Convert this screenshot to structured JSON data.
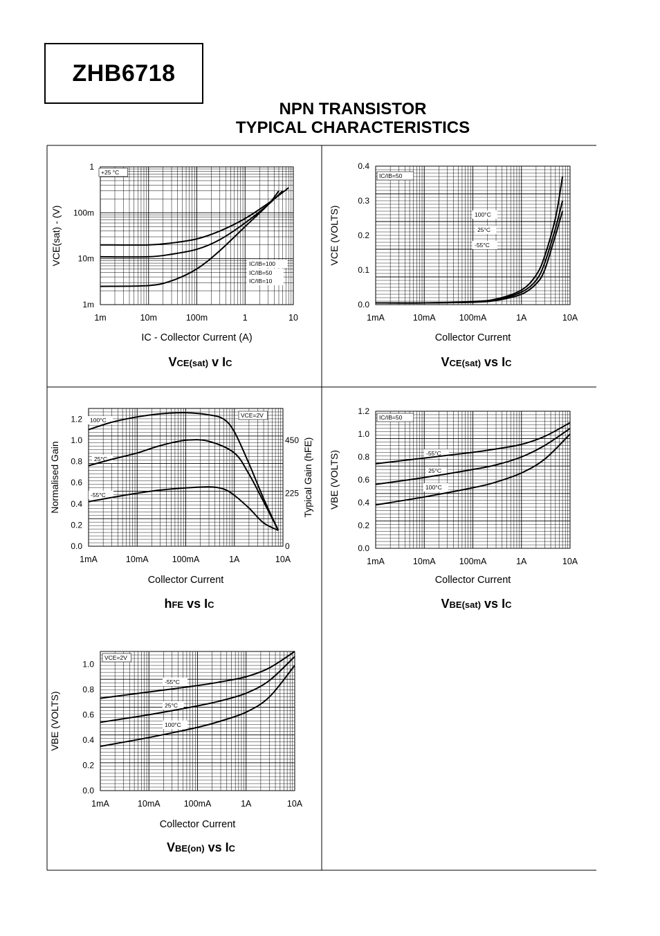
{
  "header": {
    "part_number": "ZHB6718",
    "title_line1": "NPN TRANSISTOR",
    "title_line2": "TYPICAL CHARACTERISTICS"
  },
  "chart_data": [
    {
      "id": "vcesat-v-ic",
      "type": "line",
      "title": "VCE(sat) v IC",
      "title_main": "V",
      "title_sub": "CE(sat)",
      "title_rest": " v I",
      "title_tail": "C",
      "xlabel": "IC - Collector Current (A)",
      "ylabel": "VCE(sat) - (V)",
      "x_scale": "log",
      "y_scale": "log",
      "xlim": [
        0.001,
        10
      ],
      "ylim": [
        0.001,
        1
      ],
      "x_ticks": [
        0.001,
        0.01,
        0.1,
        1,
        10
      ],
      "x_tick_labels": [
        "1m",
        "10m",
        "100m",
        "1",
        "10"
      ],
      "y_ticks": [
        0.001,
        0.01,
        0.1,
        1
      ],
      "y_tick_labels": [
        "1m",
        "10m",
        "100m",
        "1"
      ],
      "annotations": [
        "+25 °C",
        "IC/IB=100",
        "IC/IB=50",
        "IC/IB=10"
      ],
      "series": [
        {
          "name": "IC/IB=100",
          "x": [
            0.001,
            0.01,
            0.03,
            0.1,
            0.3,
            1,
            3,
            5
          ],
          "y": [
            0.0025,
            0.0026,
            0.0033,
            0.006,
            0.015,
            0.05,
            0.15,
            0.3
          ]
        },
        {
          "name": "IC/IB=50",
          "x": [
            0.001,
            0.01,
            0.03,
            0.1,
            0.3,
            1,
            3,
            6
          ],
          "y": [
            0.011,
            0.011,
            0.0125,
            0.016,
            0.026,
            0.06,
            0.15,
            0.3
          ]
        },
        {
          "name": "IC/IB=10",
          "x": [
            0.001,
            0.01,
            0.03,
            0.1,
            0.3,
            1,
            3,
            8
          ],
          "y": [
            0.02,
            0.02,
            0.022,
            0.027,
            0.04,
            0.075,
            0.16,
            0.35
          ]
        }
      ]
    },
    {
      "id": "vcesat-vs-ic",
      "type": "line",
      "title": "VCE(sat) vs IC",
      "title_main": "V",
      "title_sub": "CE(sat)",
      "title_rest": " vs I",
      "title_tail": "C",
      "xlabel": "Collector Current",
      "ylabel": "VCE (VOLTS)",
      "x_scale": "log",
      "y_scale": "linear",
      "xlim": [
        0.001,
        10
      ],
      "ylim": [
        0,
        0.4
      ],
      "x_ticks": [
        0.001,
        0.01,
        0.1,
        1,
        10
      ],
      "x_tick_labels": [
        "1mA",
        "10mA",
        "100mA",
        "1A",
        "10A"
      ],
      "y_ticks": [
        0,
        0.1,
        0.2,
        0.3,
        0.4
      ],
      "y_tick_labels": [
        "0.0",
        "0.1",
        "0.2",
        "0.3",
        "0.4"
      ],
      "annotations": [
        "IC/IB=50",
        "100°C",
        "25°C",
        "-55°C"
      ],
      "series": [
        {
          "name": "100°C",
          "x": [
            0.001,
            0.01,
            0.1,
            0.3,
            1,
            2,
            3,
            5,
            7
          ],
          "y": [
            0.005,
            0.005,
            0.007,
            0.012,
            0.03,
            0.06,
            0.1,
            0.2,
            0.27
          ]
        },
        {
          "name": "25°C",
          "x": [
            0.001,
            0.01,
            0.1,
            0.3,
            1,
            2,
            3,
            5,
            7
          ],
          "y": [
            0.005,
            0.005,
            0.008,
            0.014,
            0.036,
            0.07,
            0.12,
            0.22,
            0.3
          ]
        },
        {
          "name": "-55°C",
          "x": [
            0.001,
            0.01,
            0.1,
            0.3,
            1,
            2,
            3,
            5,
            7
          ],
          "y": [
            0.005,
            0.005,
            0.009,
            0.016,
            0.042,
            0.085,
            0.14,
            0.25,
            0.37
          ]
        }
      ]
    },
    {
      "id": "hfe-vs-ic",
      "type": "line",
      "title": "hFE vs IC",
      "title_main": "h",
      "title_sub": "FE",
      "title_rest": " vs I",
      "title_tail": "C",
      "xlabel": "Collector Current",
      "ylabel": "Normalised Gain",
      "y2label": "Typical Gain (hFE)",
      "x_scale": "log",
      "y_scale": "linear",
      "xlim": [
        0.001,
        10
      ],
      "ylim": [
        0,
        1.3
      ],
      "x_ticks": [
        0.001,
        0.01,
        0.1,
        1,
        10
      ],
      "x_tick_labels": [
        "1mA",
        "10mA",
        "100mA",
        "1A",
        "10A"
      ],
      "y_ticks": [
        0,
        0.2,
        0.4,
        0.6,
        0.8,
        1.0,
        1.2
      ],
      "y_tick_labels": [
        "0.0",
        "0.2",
        "0.4",
        "0.6",
        "0.8",
        "1.0",
        "1.2"
      ],
      "y2_ticks": [
        0,
        0.5,
        1.0
      ],
      "y2_tick_labels": [
        "0",
        "225",
        "450"
      ],
      "annotations": [
        "VCE=2V",
        "100°C",
        "25°C",
        "-55°C"
      ],
      "series": [
        {
          "name": "100°C",
          "x": [
            0.001,
            0.003,
            0.01,
            0.03,
            0.1,
            0.3,
            0.6,
            1,
            2,
            4,
            8
          ],
          "y": [
            1.1,
            1.17,
            1.22,
            1.25,
            1.26,
            1.24,
            1.2,
            1.08,
            0.78,
            0.45,
            0.15
          ]
        },
        {
          "name": "25°C",
          "x": [
            0.001,
            0.003,
            0.01,
            0.03,
            0.1,
            0.3,
            1,
            2,
            4,
            8
          ],
          "y": [
            0.76,
            0.82,
            0.88,
            0.95,
            1.0,
            0.99,
            0.88,
            0.68,
            0.42,
            0.15
          ]
        },
        {
          "name": "-55°C",
          "x": [
            0.001,
            0.003,
            0.01,
            0.03,
            0.1,
            0.3,
            0.6,
            1,
            2,
            4,
            8
          ],
          "y": [
            0.42,
            0.46,
            0.5,
            0.53,
            0.55,
            0.56,
            0.54,
            0.48,
            0.36,
            0.22,
            0.15
          ]
        }
      ]
    },
    {
      "id": "vbesat-vs-ic",
      "type": "line",
      "title": "VBE(sat) vs IC",
      "title_main": "V",
      "title_sub": "BE(sat)",
      "title_rest": " vs I",
      "title_tail": "C",
      "xlabel": "Collector Current",
      "ylabel": "VBE (VOLTS)",
      "x_scale": "log",
      "y_scale": "linear",
      "xlim": [
        0.001,
        10
      ],
      "ylim": [
        0,
        1.2
      ],
      "x_ticks": [
        0.001,
        0.01,
        0.1,
        1,
        10
      ],
      "x_tick_labels": [
        "1mA",
        "10mA",
        "100mA",
        "1A",
        "10A"
      ],
      "y_ticks": [
        0,
        0.2,
        0.4,
        0.6,
        0.8,
        1.0,
        1.2
      ],
      "y_tick_labels": [
        "0.0",
        "0.2",
        "0.4",
        "0.6",
        "0.8",
        "1.0",
        "1.2"
      ],
      "annotations": [
        "IC/IB=50",
        "-55°C",
        "25°C",
        "100°C"
      ],
      "series": [
        {
          "name": "-55°C",
          "x": [
            0.001,
            0.01,
            0.1,
            0.3,
            1,
            3,
            10
          ],
          "y": [
            0.74,
            0.79,
            0.84,
            0.87,
            0.91,
            0.98,
            1.1
          ]
        },
        {
          "name": "25°C",
          "x": [
            0.001,
            0.01,
            0.1,
            0.3,
            1,
            3,
            10
          ],
          "y": [
            0.56,
            0.62,
            0.69,
            0.73,
            0.8,
            0.9,
            1.05
          ]
        },
        {
          "name": "100°C",
          "x": [
            0.001,
            0.01,
            0.1,
            0.3,
            1,
            3,
            10
          ],
          "y": [
            0.38,
            0.45,
            0.53,
            0.58,
            0.66,
            0.78,
            1.0
          ]
        }
      ]
    },
    {
      "id": "vbeon-vs-ic",
      "type": "line",
      "title": "VBE(on) vs IC",
      "title_main": "V",
      "title_sub": "BE(on)",
      "title_rest": " vs I",
      "title_tail": "C",
      "xlabel": "Collector Current",
      "ylabel": "VBE (VOLTS)",
      "x_scale": "log",
      "y_scale": "linear",
      "xlim": [
        0.001,
        10
      ],
      "ylim": [
        0,
        1.1
      ],
      "x_ticks": [
        0.001,
        0.01,
        0.1,
        1,
        10
      ],
      "x_tick_labels": [
        "1mA",
        "10mA",
        "100mA",
        "1A",
        "10A"
      ],
      "y_ticks": [
        0,
        0.2,
        0.4,
        0.6,
        0.8,
        1.0
      ],
      "y_tick_labels": [
        "0.0",
        "0.2",
        "0.4",
        "0.6",
        "0.8",
        "1.0"
      ],
      "annotations": [
        "VCE=2V",
        "-55°C",
        "25°C",
        "100°C"
      ],
      "series": [
        {
          "name": "-55°C",
          "x": [
            0.001,
            0.01,
            0.1,
            0.3,
            1,
            3,
            10
          ],
          "y": [
            0.73,
            0.78,
            0.83,
            0.86,
            0.9,
            0.97,
            1.1
          ]
        },
        {
          "name": "25°C",
          "x": [
            0.001,
            0.01,
            0.1,
            0.3,
            1,
            3,
            10
          ],
          "y": [
            0.54,
            0.6,
            0.67,
            0.71,
            0.77,
            0.87,
            1.06
          ]
        },
        {
          "name": "100°C",
          "x": [
            0.001,
            0.01,
            0.1,
            0.3,
            1,
            3,
            10
          ],
          "y": [
            0.35,
            0.42,
            0.5,
            0.55,
            0.62,
            0.74,
            0.99
          ]
        }
      ]
    }
  ]
}
